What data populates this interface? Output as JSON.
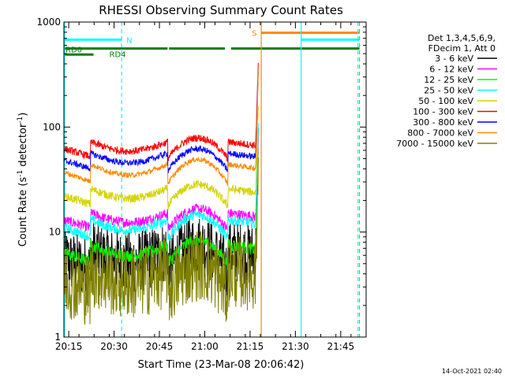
{
  "chart_data": {
    "type": "line",
    "title": "RHESSI Observing Summary Count Rates",
    "xlabel": "Start Time (23-Mar-08 20:06:42)",
    "ylabel": "Count Rate (s",
    "ylabel_sup": "-1",
    "ylabel_mid": " detector",
    "ylabel_end": ")",
    "y_scale": "log",
    "ylim": [
      1,
      1000
    ],
    "xlim_min": [
      6.7,
      106.7
    ],
    "x_tick_min": [
      8.3,
      23.3,
      38.3,
      53.3,
      68.3,
      83.3,
      98.3
    ],
    "x_tick_labels": [
      "20:15",
      "20:30",
      "20:45",
      "21:00",
      "21:15",
      "21:30",
      "21:45"
    ],
    "y_tick_values": [
      1,
      10,
      100,
      1000
    ],
    "y_tick_labels": [
      "1",
      "10",
      "100",
      "1000"
    ],
    "timestamp": "14-Oct-2021 02:40",
    "legend_header": [
      "Det 1,3,4,5,6,9,",
      "FDecim 1, Att 0"
    ],
    "series": [
      {
        "name": "3 - 6 keV",
        "color": "#000000",
        "base": 5.5,
        "amp": 0.18,
        "noise": 0.3
      },
      {
        "name": "6 - 12 keV",
        "color": "#ff00ff",
        "base": 13.0,
        "amp": 0.08,
        "noise": 0.05
      },
      {
        "name": "12 - 25 keV",
        "color": "#00ff00",
        "base": 6.3,
        "amp": 0.12,
        "noise": 0.06
      },
      {
        "name": "25 - 50 keV",
        "color": "#00ffff",
        "base": 11.0,
        "amp": 0.14,
        "noise": 0.05
      },
      {
        "name": "50 - 100 keV",
        "color": "#d4d400",
        "base": 22.0,
        "amp": 0.1,
        "noise": 0.04
      },
      {
        "name": "100 - 300 keV",
        "color": "#ff0000",
        "base": 62.0,
        "amp": 0.08,
        "noise": 0.035
      },
      {
        "name": "300 - 800 keV",
        "color": "#0000ff",
        "base": 48.0,
        "amp": 0.1,
        "noise": 0.03
      },
      {
        "name": "800 - 7000 keV",
        "color": "#ff8800",
        "base": 37.0,
        "amp": 0.14,
        "noise": 0.025
      },
      {
        "name": "7000 - 15000 keV",
        "color": "#808000",
        "base": 3.5,
        "amp": 0.2,
        "noise": 0.35
      }
    ],
    "data_end_min": 71.0,
    "flags": [
      {
        "label": "RD0",
        "color": "#008000",
        "y": 490,
        "segments": [
          [
            6.7,
            16.5
          ]
        ]
      },
      {
        "label": "RD4",
        "color": "#008000",
        "y": 560,
        "segments": [
          [
            6.7,
            41.0
          ],
          [
            41.5,
            60.0
          ],
          [
            62.0,
            104.5
          ]
        ]
      },
      {
        "label": "N",
        "color": "#00ffff",
        "y": 680,
        "segments": [
          [
            6.7,
            25.8
          ],
          [
            85.2,
            104.5
          ]
        ]
      },
      {
        "label": "S",
        "color": "#ff8800",
        "y": 790,
        "segments": [
          [
            72.0,
            104.5
          ]
        ]
      }
    ],
    "vlines": [
      {
        "x": 6.9,
        "color": "#00ffff",
        "dashed": false
      },
      {
        "x": 25.8,
        "color": "#00ffff",
        "dashed": true
      },
      {
        "x": 72.0,
        "color": "#ff8800",
        "dashed": false
      },
      {
        "x": 85.2,
        "color": "#00ffff",
        "dashed": false
      },
      {
        "x": 104.0,
        "color": "#00ffff",
        "dashed": true
      },
      {
        "x": 104.5,
        "color": "#ff8800",
        "dashed": true
      }
    ]
  }
}
